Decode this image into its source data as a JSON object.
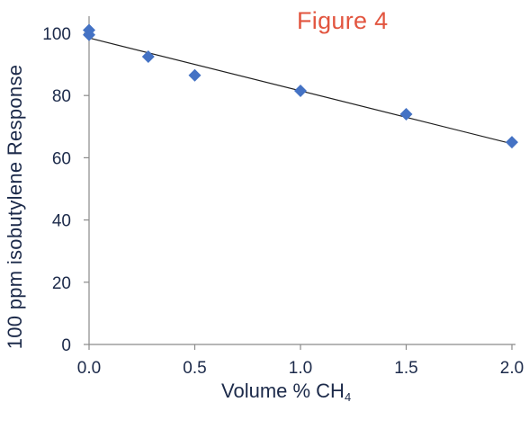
{
  "chart_data": {
    "type": "scatter",
    "title": "Figure 4",
    "xlabel_main": "Volume % CH",
    "xlabel_sub": "4",
    "ylabel": "100 ppm isobutylene Response",
    "xlim": [
      0.0,
      2.0
    ],
    "ylim": [
      0,
      100
    ],
    "x_ticks": [
      "0.0",
      "0.5",
      "1.0",
      "1.5",
      "2.0"
    ],
    "y_ticks": [
      "0",
      "20",
      "40",
      "60",
      "80",
      "100"
    ],
    "points": [
      {
        "x": 0.0,
        "y": 101
      },
      {
        "x": 0.0,
        "y": 99.5
      },
      {
        "x": 0.28,
        "y": 92.5
      },
      {
        "x": 0.5,
        "y": 86.5
      },
      {
        "x": 1.0,
        "y": 81.5
      },
      {
        "x": 1.5,
        "y": 74
      },
      {
        "x": 2.0,
        "y": 65
      }
    ],
    "trendline": {
      "x": [
        0.0,
        2.0
      ],
      "y": [
        98.5,
        64.5
      ]
    },
    "marker_color": "#4472c4",
    "line_color": "#1f1f1f",
    "grid": false,
    "legend": "none"
  }
}
